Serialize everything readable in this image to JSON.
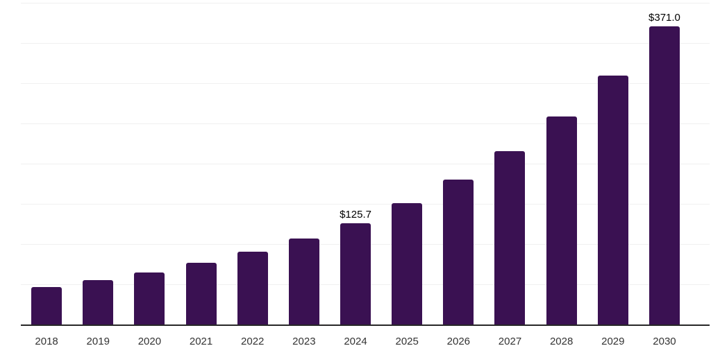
{
  "chart_data": {
    "type": "bar",
    "title": "",
    "xlabel": "",
    "ylabel": "",
    "categories": [
      "2018",
      "2019",
      "2020",
      "2021",
      "2022",
      "2023",
      "2024",
      "2025",
      "2026",
      "2027",
      "2028",
      "2029",
      "2030"
    ],
    "values": [
      46.4,
      55.1,
      65.0,
      76.6,
      90.4,
      106.6,
      125.7,
      150.6,
      180.3,
      215.9,
      258.6,
      309.8,
      371.0
    ],
    "data_labels": [
      "",
      "",
      "",
      "",
      "",
      "",
      "$125.7",
      "",
      "",
      "",
      "",
      "",
      "$371.0"
    ],
    "ylim": [
      0,
      400
    ],
    "gridline_step": 50,
    "grid": true,
    "legend": "none",
    "bar_color": "#3a1152",
    "axis_color": "#262626",
    "gridline_color": "#f0f0f0",
    "tick_label_color": "#333333",
    "data_label_color": "#000000"
  }
}
